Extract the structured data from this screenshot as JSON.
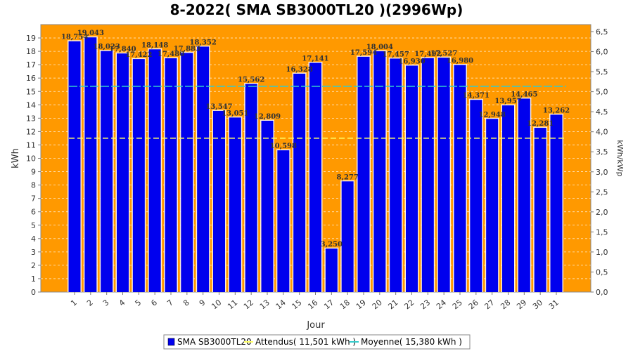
{
  "chart_data": {
    "type": "bar",
    "title": "8-2022( SMA SB3000TL20 )(2996Wp)",
    "xlabel": "Jour",
    "ylabel": "kWh",
    "y2label": "kWh/kWp",
    "ylim": [
      0,
      20
    ],
    "y2lim": [
      0,
      6.675
    ],
    "yticks": [
      0,
      1,
      2,
      3,
      4,
      5,
      6,
      7,
      8,
      9,
      10,
      11,
      12,
      13,
      14,
      15,
      16,
      17,
      18,
      19
    ],
    "y2ticks": [
      "0,0",
      "0,5",
      "1,0",
      "1,5",
      "2,0",
      "2,5",
      "3,0",
      "3,5",
      "4,0",
      "4,5",
      "5,0",
      "5,5",
      "6,0",
      "6,5"
    ],
    "categories": [
      "1",
      "2",
      "3",
      "4",
      "5",
      "6",
      "7",
      "8",
      "9",
      "10",
      "11",
      "12",
      "13",
      "14",
      "15",
      "16",
      "17",
      "18",
      "19",
      "20",
      "21",
      "22",
      "23",
      "24",
      "25",
      "26",
      "27",
      "28",
      "29",
      "30",
      "31"
    ],
    "series": [
      {
        "name": "SMA SB3000TL20",
        "color": "#0000ee",
        "values": [
          18.754,
          19.043,
          18.023,
          17.84,
          17.422,
          18.148,
          17.48,
          17.883,
          18.352,
          13.547,
          13.051,
          15.562,
          12.809,
          10.598,
          16.328,
          17.141,
          3.25,
          8.277,
          17.594,
          18.004,
          17.457,
          16.93,
          17.492,
          17.527,
          16.98,
          14.371,
          12.948,
          13.957,
          14.465,
          12.281,
          13.262
        ],
        "labels": [
          "18,754",
          "19,043",
          "18,023",
          "17,840",
          "17,422",
          "18,148",
          "17,480",
          "17,883",
          "18,352",
          "13,547",
          "13,051",
          "15,562",
          "12,809",
          "10,598",
          "16,328",
          "17,141",
          "3,250",
          "8,277",
          "17,594",
          "18,004",
          "17,457",
          "16,930",
          "17,492",
          "17,527",
          "16,980",
          "14,371",
          "12,948",
          "13,957",
          "14,465",
          "12,281",
          "13,262"
        ]
      }
    ],
    "reference_lines": [
      {
        "name": "Attendus( 11,501 kWh )",
        "value": 11.501,
        "color": "#ffff66"
      },
      {
        "name": "Moyenne( 15,380 kWh )",
        "value": 15.38,
        "color": "#33cccc"
      }
    ],
    "plot_background": "#ff9900",
    "grid": true,
    "legend_position": "bottom"
  }
}
